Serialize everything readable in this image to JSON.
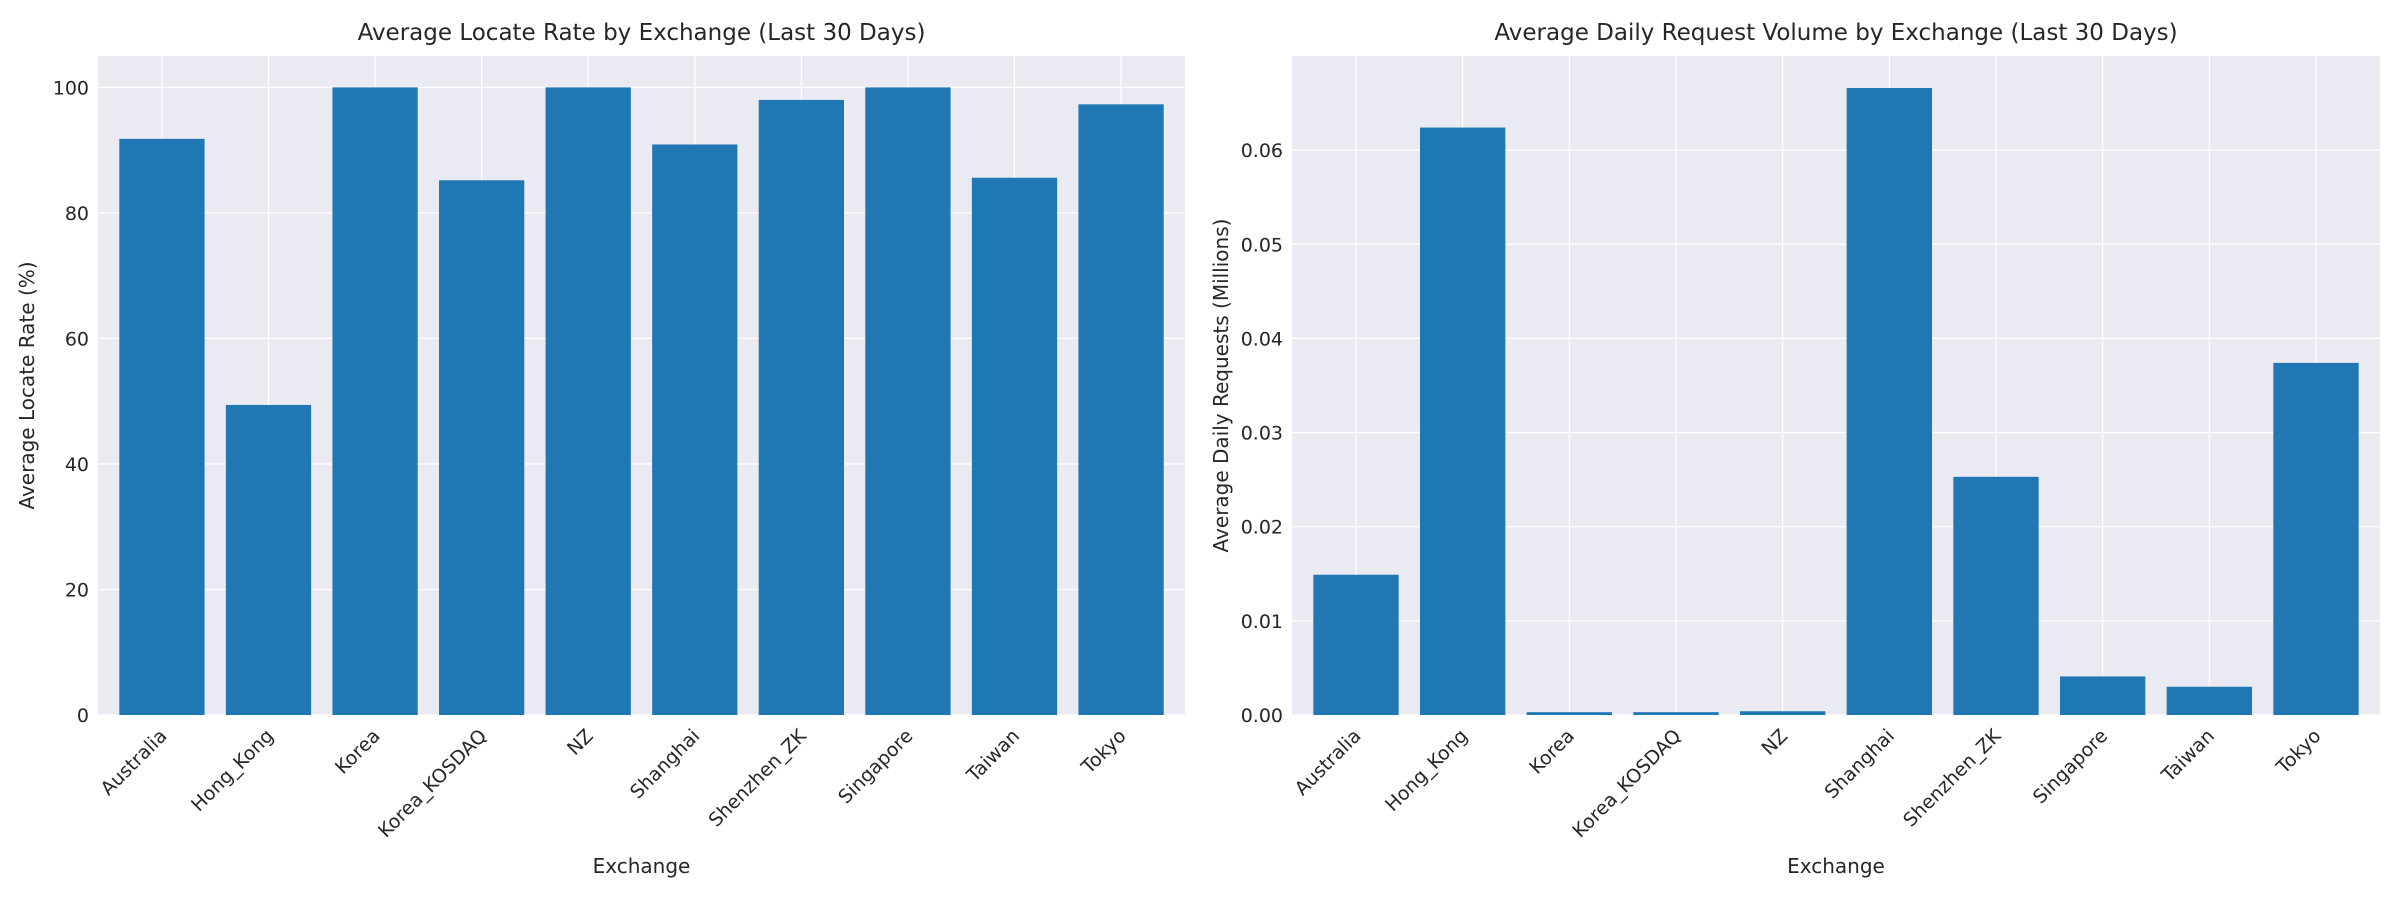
{
  "chart_data": [
    {
      "type": "bar",
      "title": "Average Locate Rate by Exchange (Last 30 Days)",
      "xlabel": "Exchange",
      "ylabel": "Average Locate Rate (%)",
      "categories": [
        "Australia",
        "Hong_Kong",
        "Korea",
        "Korea_KOSDAQ",
        "NZ",
        "Shanghai",
        "Shenzhen_ZK",
        "Singapore",
        "Taiwan",
        "Tokyo"
      ],
      "values": [
        91.8,
        49.4,
        100,
        85.2,
        100,
        90.9,
        98.0,
        100,
        85.6,
        97.3
      ],
      "ylim": [
        0,
        105
      ],
      "yticks": [
        0,
        20,
        40,
        60,
        80,
        100
      ],
      "ytick_labels": [
        "0",
        "20",
        "40",
        "60",
        "80",
        "100"
      ],
      "bar_color": "#1f77b4",
      "background": "#eaeaf2",
      "grid": true
    },
    {
      "type": "bar",
      "title": "Average Daily Request Volume by Exchange (Last 30 Days)",
      "xlabel": "Exchange",
      "ylabel": "Average Daily Requests (Millions)",
      "categories": [
        "Australia",
        "Hong_Kong",
        "Korea",
        "Korea_KOSDAQ",
        "NZ",
        "Shanghai",
        "Shenzhen_ZK",
        "Singapore",
        "Taiwan",
        "Tokyo"
      ],
      "values": [
        0.0149,
        0.0624,
        0.0003,
        0.0003,
        0.0004,
        0.0666,
        0.0253,
        0.0041,
        0.003,
        0.0374
      ],
      "ylim": [
        0,
        0.07
      ],
      "yticks": [
        0,
        0.01,
        0.02,
        0.03,
        0.04,
        0.05,
        0.06
      ],
      "ytick_labels": [
        "0.00",
        "0.01",
        "0.02",
        "0.03",
        "0.04",
        "0.05",
        "0.06"
      ],
      "bar_color": "#1f77b4",
      "background": "#eaeaf2",
      "grid": true
    }
  ]
}
